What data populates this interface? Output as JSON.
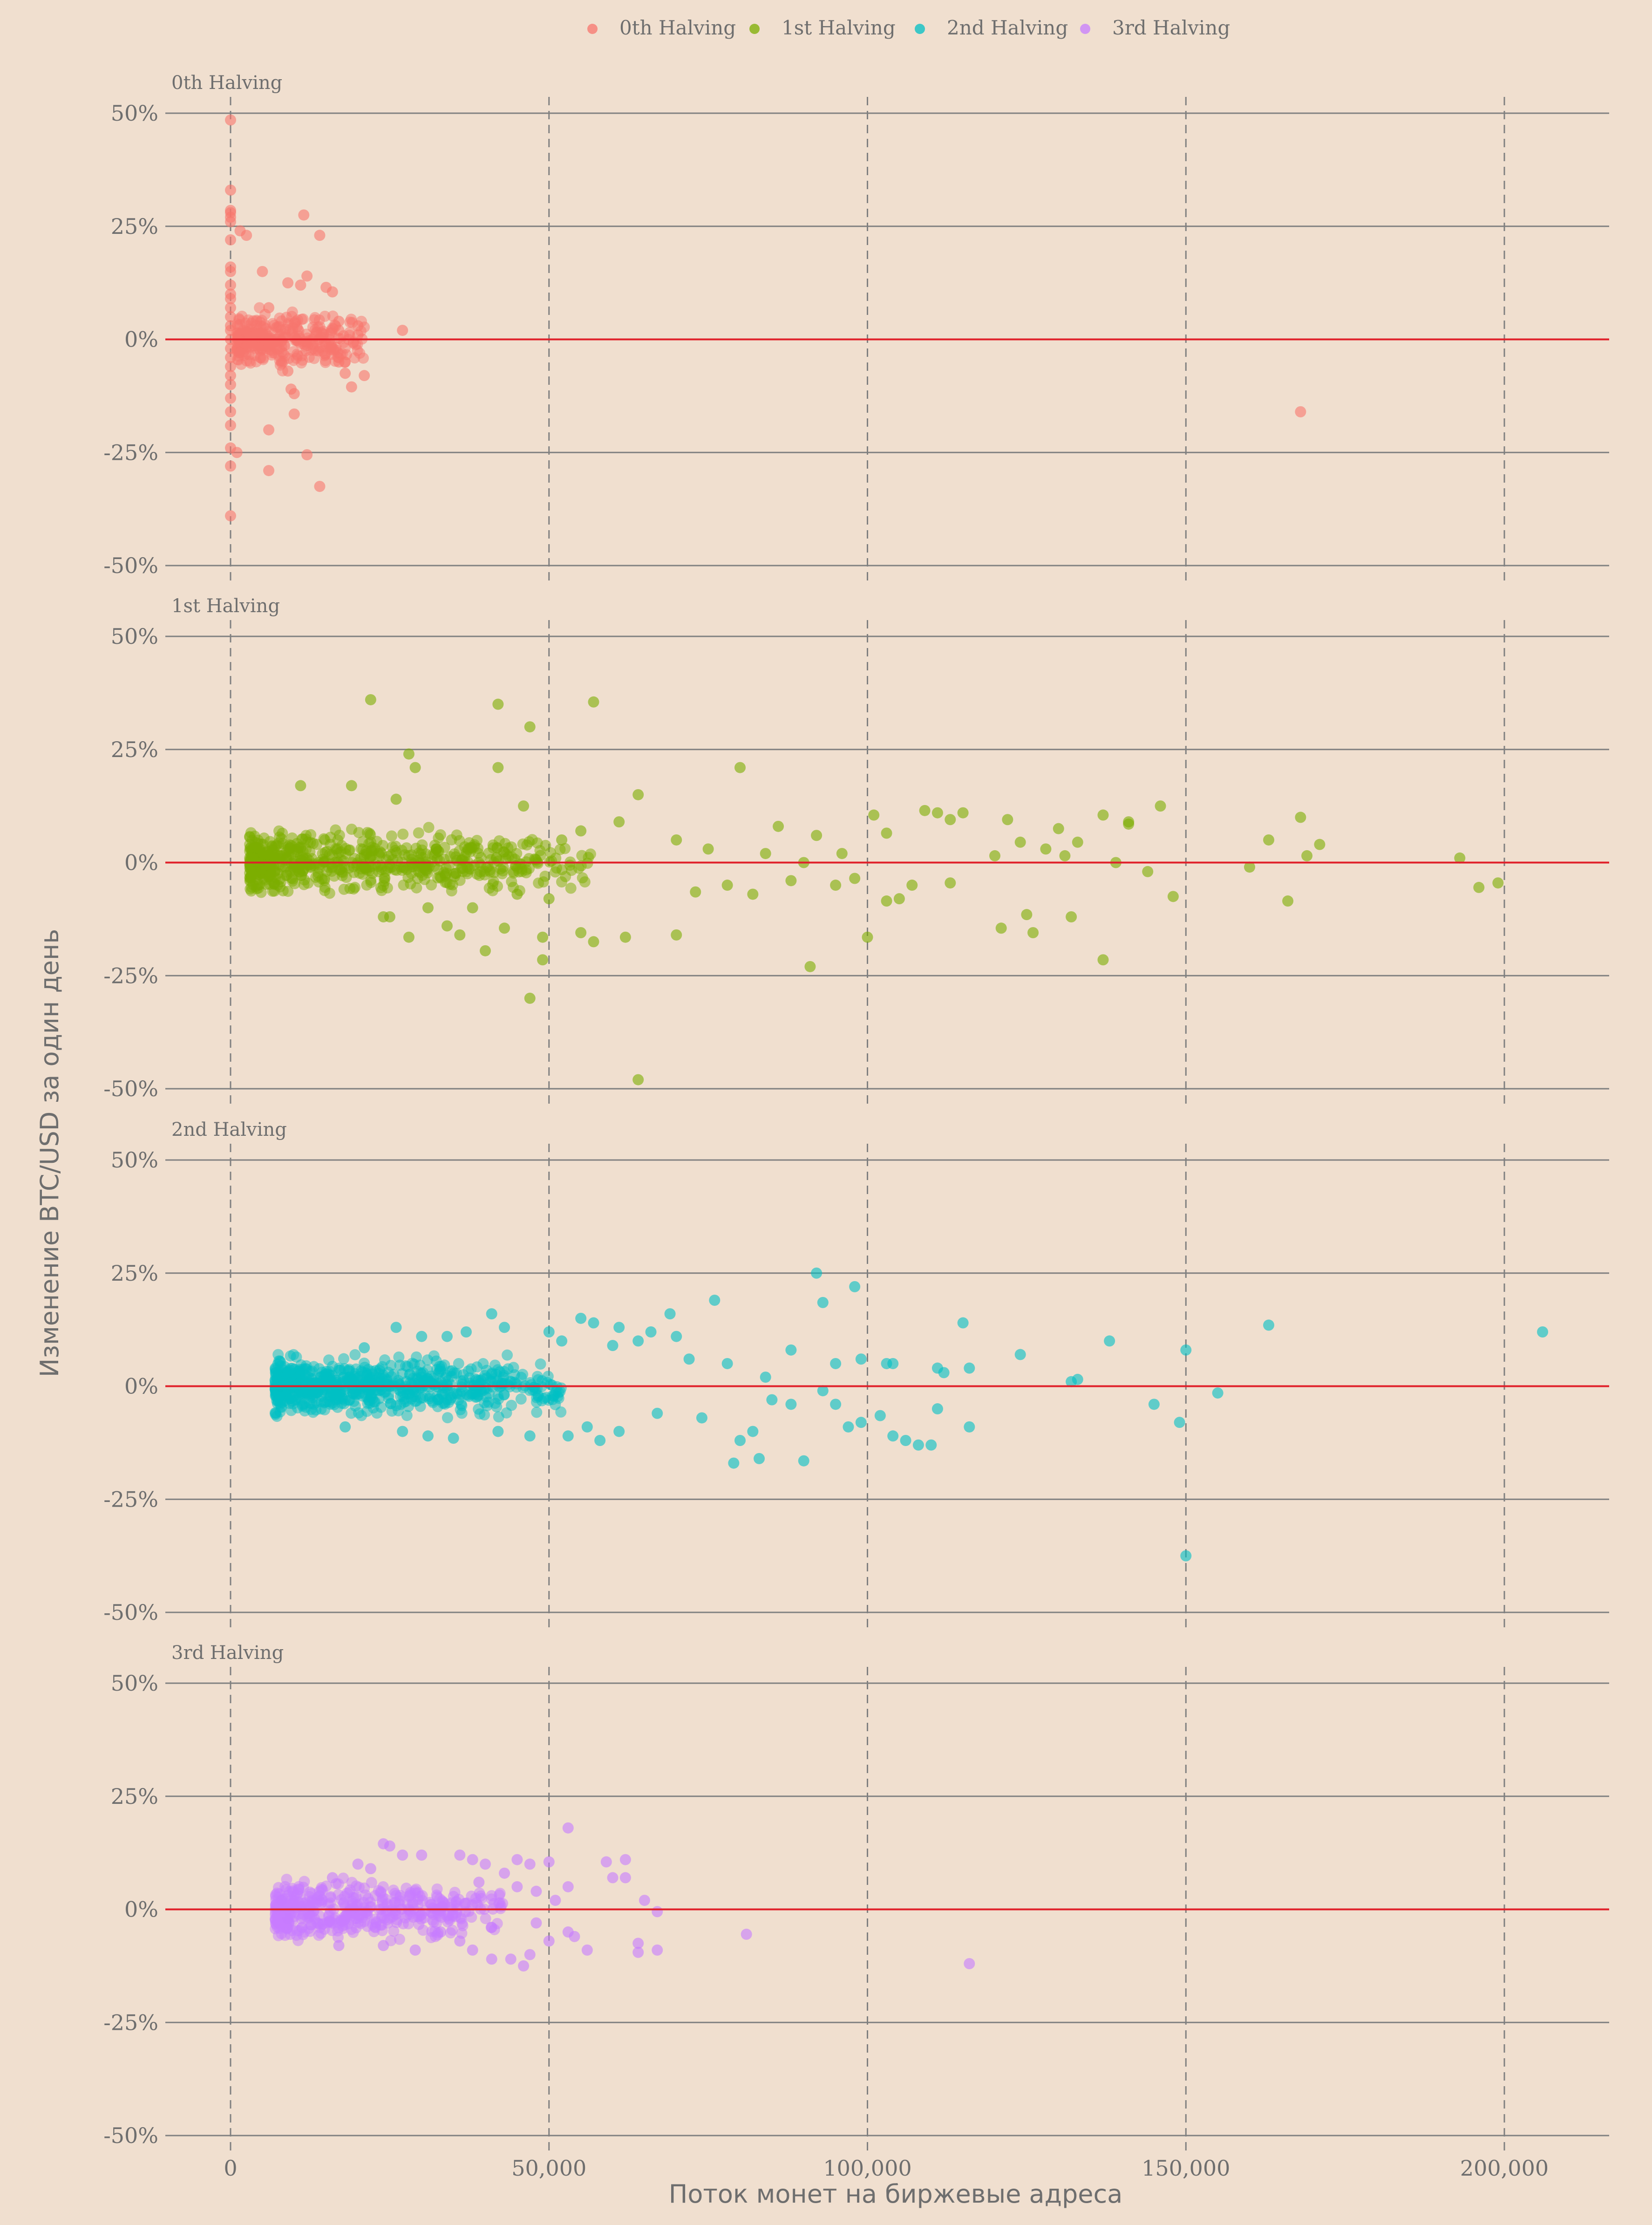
{
  "colors": {
    "background": "#f0dfcf",
    "gridline": "#808080",
    "zero_line": "#e0202a",
    "text": "#6e6e6e"
  },
  "chart_data": {
    "type": "scatter",
    "facet_layout": "vertical",
    "legend_position": "top",
    "xlabel": "Поток монет на биржевые адреса",
    "ylabel": "Изменение BTC/USD за один день",
    "xlim": [
      -10000,
      217000
    ],
    "ylim": [
      -0.5,
      0.5
    ],
    "x_ticks": [
      0,
      50000,
      100000,
      150000,
      200000
    ],
    "x_tick_labels": [
      "0",
      "50,000",
      "100,000",
      "150,000",
      "200,000"
    ],
    "y_ticks": [
      -0.5,
      -0.25,
      0,
      0.25,
      0.5
    ],
    "y_tick_labels": [
      "-50%",
      "-25%",
      "0%",
      "25%",
      "50%"
    ],
    "grid": {
      "horizontal": "solid",
      "vertical": "dashed"
    },
    "reference_line": {
      "y": 0,
      "color": "#e0202a"
    },
    "series": [
      {
        "name": "0th Halving",
        "color": "#f8766d",
        "points": [
          [
            0,
            0.485
          ],
          [
            0,
            0.33
          ],
          [
            0,
            0.285
          ],
          [
            0,
            0.28
          ],
          [
            0,
            0.27
          ],
          [
            0,
            0.26
          ],
          [
            0,
            0.22
          ],
          [
            0,
            0.16
          ],
          [
            0,
            0.15
          ],
          [
            0,
            0.12
          ],
          [
            0,
            0.1
          ],
          [
            0,
            0.09
          ],
          [
            0,
            0.07
          ],
          [
            0,
            0.05
          ],
          [
            0,
            0.03
          ],
          [
            0,
            0.02
          ],
          [
            0,
            0.0
          ],
          [
            0,
            -0.02
          ],
          [
            0,
            -0.04
          ],
          [
            0,
            -0.06
          ],
          [
            0,
            -0.08
          ],
          [
            0,
            -0.1
          ],
          [
            0,
            -0.13
          ],
          [
            0,
            -0.16
          ],
          [
            0,
            -0.19
          ],
          [
            0,
            -0.24
          ],
          [
            0,
            -0.28
          ],
          [
            0,
            -0.39
          ],
          [
            1000,
            -0.25
          ],
          [
            1500,
            0.24
          ],
          [
            2500,
            0.23
          ],
          [
            5000,
            0.15
          ],
          [
            6000,
            0.07
          ],
          [
            6000,
            -0.2
          ],
          [
            6000,
            -0.29
          ],
          [
            9000,
            0.125
          ],
          [
            11000,
            0.12
          ],
          [
            12000,
            0.14
          ],
          [
            10000,
            -0.12
          ],
          [
            9500,
            -0.11
          ],
          [
            9000,
            -0.07
          ],
          [
            10000,
            -0.165
          ],
          [
            12000,
            -0.255
          ],
          [
            11500,
            0.275
          ],
          [
            14000,
            0.23
          ],
          [
            14000,
            -0.325
          ],
          [
            15000,
            0.115
          ],
          [
            16000,
            0.105
          ],
          [
            17000,
            0.04
          ],
          [
            17000,
            0.02
          ],
          [
            17000,
            -0.05
          ],
          [
            18000,
            -0.05
          ],
          [
            18000,
            -0.075
          ],
          [
            19000,
            -0.105
          ],
          [
            20000,
            0.03
          ],
          [
            20000,
            0.01
          ],
          [
            21000,
            -0.08
          ],
          [
            27000,
            0.02
          ],
          [
            168000,
            -0.16
          ]
        ],
        "cluster": {
          "x_min": 1000,
          "x_max": 21000,
          "y_min": -0.07,
          "y_max": 0.08,
          "count": 320
        }
      },
      {
        "name": "1st Halving",
        "color": "#7cae00",
        "points": [
          [
            22000,
            0.36
          ],
          [
            42000,
            0.35
          ],
          [
            47000,
            0.3
          ],
          [
            57000,
            0.355
          ],
          [
            28000,
            0.24
          ],
          [
            29000,
            0.21
          ],
          [
            42000,
            0.21
          ],
          [
            80000,
            0.21
          ],
          [
            64000,
            0.15
          ],
          [
            26000,
            0.14
          ],
          [
            11000,
            0.17
          ],
          [
            19000,
            0.17
          ],
          [
            46000,
            0.125
          ],
          [
            86000,
            0.08
          ],
          [
            92000,
            0.06
          ],
          [
            101000,
            0.105
          ],
          [
            103000,
            0.065
          ],
          [
            109000,
            0.115
          ],
          [
            111000,
            0.11
          ],
          [
            113000,
            0.095
          ],
          [
            115000,
            0.11
          ],
          [
            120000,
            0.015
          ],
          [
            122000,
            0.095
          ],
          [
            124000,
            0.045
          ],
          [
            128000,
            0.03
          ],
          [
            130000,
            0.075
          ],
          [
            131000,
            0.015
          ],
          [
            133000,
            0.045
          ],
          [
            137000,
            0.105
          ],
          [
            139000,
            0.0
          ],
          [
            141000,
            0.09
          ],
          [
            141000,
            0.085
          ],
          [
            144000,
            -0.02
          ],
          [
            146000,
            0.125
          ],
          [
            148000,
            -0.075
          ],
          [
            160000,
            -0.01
          ],
          [
            163000,
            0.05
          ],
          [
            166000,
            -0.085
          ],
          [
            168000,
            0.1
          ],
          [
            169000,
            0.015
          ],
          [
            171000,
            0.04
          ],
          [
            193000,
            0.01
          ],
          [
            196000,
            -0.055
          ],
          [
            199000,
            -0.045
          ],
          [
            105000,
            -0.08
          ],
          [
            103000,
            -0.085
          ],
          [
            107000,
            -0.05
          ],
          [
            113000,
            -0.045
          ],
          [
            121000,
            -0.145
          ],
          [
            125000,
            -0.115
          ],
          [
            126000,
            -0.155
          ],
          [
            132000,
            -0.12
          ],
          [
            137000,
            -0.215
          ],
          [
            91000,
            -0.23
          ],
          [
            100000,
            -0.165
          ],
          [
            70000,
            -0.16
          ],
          [
            62000,
            -0.165
          ],
          [
            57000,
            -0.175
          ],
          [
            55000,
            -0.155
          ],
          [
            49000,
            -0.165
          ],
          [
            49000,
            -0.215
          ],
          [
            43000,
            -0.145
          ],
          [
            40000,
            -0.195
          ],
          [
            34000,
            -0.14
          ],
          [
            36000,
            -0.16
          ],
          [
            28000,
            -0.165
          ],
          [
            24000,
            -0.12
          ],
          [
            47000,
            -0.3
          ],
          [
            64000,
            -0.48
          ],
          [
            73000,
            -0.065
          ],
          [
            78000,
            -0.05
          ],
          [
            82000,
            -0.07
          ],
          [
            88000,
            -0.04
          ],
          [
            95000,
            -0.05
          ],
          [
            98000,
            -0.035
          ],
          [
            70000,
            0.05
          ],
          [
            75000,
            0.03
          ],
          [
            84000,
            0.02
          ],
          [
            90000,
            0.0
          ],
          [
            96000,
            0.02
          ],
          [
            61000,
            0.09
          ],
          [
            55000,
            0.07
          ],
          [
            52000,
            0.05
          ],
          [
            50000,
            -0.08
          ],
          [
            45000,
            -0.07
          ],
          [
            38000,
            -0.1
          ],
          [
            31000,
            -0.1
          ],
          [
            25000,
            -0.12
          ]
        ],
        "cluster": {
          "x_min": 3000,
          "x_max": 58000,
          "y_min": -0.07,
          "y_max": 0.08,
          "count": 650
        }
      },
      {
        "name": "2nd Halving",
        "color": "#00bfc4",
        "points": [
          [
            92000,
            0.25
          ],
          [
            98000,
            0.22
          ],
          [
            93000,
            0.185
          ],
          [
            76000,
            0.19
          ],
          [
            69000,
            0.16
          ],
          [
            41000,
            0.16
          ],
          [
            55000,
            0.15
          ],
          [
            57000,
            0.14
          ],
          [
            61000,
            0.13
          ],
          [
            66000,
            0.12
          ],
          [
            70000,
            0.11
          ],
          [
            115000,
            0.14
          ],
          [
            138000,
            0.1
          ],
          [
            163000,
            0.135
          ],
          [
            206000,
            0.12
          ],
          [
            150000,
            0.08
          ],
          [
            124000,
            0.07
          ],
          [
            111000,
            0.04
          ],
          [
            112000,
            0.03
          ],
          [
            116000,
            0.04
          ],
          [
            103000,
            0.05
          ],
          [
            104000,
            0.05
          ],
          [
            133000,
            0.015
          ],
          [
            132000,
            0.01
          ],
          [
            145000,
            -0.04
          ],
          [
            149000,
            -0.08
          ],
          [
            155000,
            -0.015
          ],
          [
            150000,
            -0.375
          ],
          [
            79000,
            -0.17
          ],
          [
            83000,
            -0.16
          ],
          [
            90000,
            -0.165
          ],
          [
            102000,
            -0.065
          ],
          [
            104000,
            -0.11
          ],
          [
            106000,
            -0.12
          ],
          [
            108000,
            -0.13
          ],
          [
            110000,
            -0.13
          ],
          [
            111000,
            -0.05
          ],
          [
            116000,
            -0.09
          ],
          [
            99000,
            -0.08
          ],
          [
            97000,
            -0.09
          ],
          [
            95000,
            -0.04
          ],
          [
            93000,
            -0.01
          ],
          [
            88000,
            -0.04
          ],
          [
            85000,
            -0.03
          ],
          [
            82000,
            -0.1
          ],
          [
            80000,
            -0.12
          ],
          [
            74000,
            -0.07
          ],
          [
            67000,
            -0.06
          ],
          [
            61000,
            -0.1
          ],
          [
            58000,
            -0.12
          ],
          [
            56000,
            -0.09
          ],
          [
            53000,
            -0.11
          ],
          [
            47000,
            -0.11
          ],
          [
            42000,
            -0.1
          ],
          [
            35000,
            -0.115
          ],
          [
            31000,
            -0.11
          ],
          [
            27000,
            -0.1
          ],
          [
            18000,
            -0.09
          ],
          [
            26000,
            0.13
          ],
          [
            30000,
            0.11
          ],
          [
            34000,
            0.11
          ],
          [
            37000,
            0.12
          ],
          [
            43000,
            0.13
          ],
          [
            50000,
            0.12
          ],
          [
            52000,
            0.1
          ],
          [
            60000,
            0.09
          ],
          [
            64000,
            0.1
          ],
          [
            72000,
            0.06
          ],
          [
            78000,
            0.05
          ],
          [
            84000,
            0.02
          ],
          [
            88000,
            0.08
          ],
          [
            95000,
            0.05
          ],
          [
            99000,
            0.06
          ],
          [
            21000,
            0.085
          ]
        ],
        "cluster": {
          "x_min": 7000,
          "x_max": 52000,
          "y_min": -0.07,
          "y_max": 0.07,
          "count": 750
        }
      },
      {
        "name": "3rd Halving",
        "color": "#c77cff",
        "points": [
          [
            53000,
            0.18
          ],
          [
            24000,
            0.145
          ],
          [
            25000,
            0.14
          ],
          [
            27000,
            0.12
          ],
          [
            30000,
            0.12
          ],
          [
            36000,
            0.12
          ],
          [
            38000,
            0.11
          ],
          [
            40000,
            0.1
          ],
          [
            45000,
            0.11
          ],
          [
            47000,
            0.1
          ],
          [
            50000,
            0.105
          ],
          [
            59000,
            0.105
          ],
          [
            62000,
            0.11
          ],
          [
            60000,
            0.07
          ],
          [
            62000,
            0.07
          ],
          [
            65000,
            0.02
          ],
          [
            67000,
            -0.005
          ],
          [
            53000,
            0.05
          ],
          [
            51000,
            0.02
          ],
          [
            48000,
            0.04
          ],
          [
            45000,
            0.05
          ],
          [
            81000,
            -0.055
          ],
          [
            116000,
            -0.12
          ],
          [
            64000,
            -0.075
          ],
          [
            64000,
            -0.095
          ],
          [
            67000,
            -0.09
          ],
          [
            56000,
            -0.09
          ],
          [
            53000,
            -0.05
          ],
          [
            54000,
            -0.06
          ],
          [
            47000,
            -0.1
          ],
          [
            46000,
            -0.125
          ],
          [
            44000,
            -0.11
          ],
          [
            41000,
            -0.11
          ],
          [
            38000,
            -0.09
          ],
          [
            36000,
            -0.07
          ],
          [
            33000,
            -0.05
          ],
          [
            29000,
            -0.09
          ],
          [
            24000,
            -0.08
          ],
          [
            17000,
            -0.08
          ],
          [
            20000,
            0.1
          ],
          [
            22000,
            0.09
          ],
          [
            16000,
            0.07
          ],
          [
            14000,
            0.03
          ],
          [
            8000,
            0.02
          ],
          [
            9000,
            -0.02
          ],
          [
            43000,
            0.08
          ],
          [
            39000,
            0.06
          ],
          [
            41000,
            -0.04
          ],
          [
            48000,
            -0.03
          ],
          [
            50000,
            -0.07
          ]
        ],
        "cluster": {
          "x_min": 7000,
          "x_max": 43000,
          "y_min": -0.07,
          "y_max": 0.07,
          "count": 450
        }
      }
    ]
  }
}
